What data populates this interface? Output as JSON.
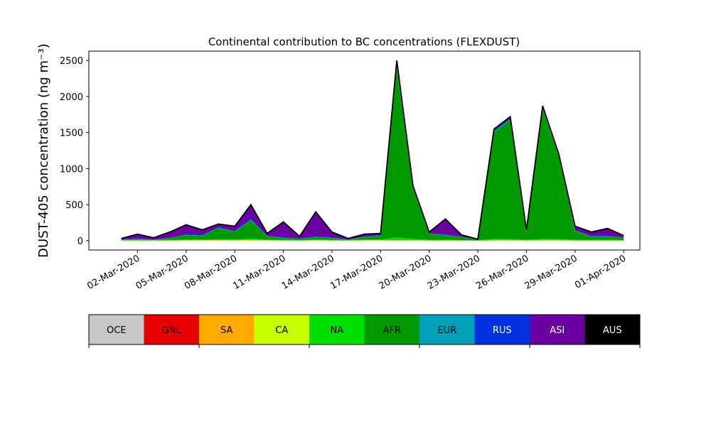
{
  "chart_data": {
    "type": "stacked_area",
    "title": "Continental contribution to BC concentrations (FLEXDUST)",
    "ylabel": "DUST-405 concentration (ng m⁻³)",
    "x": [
      "01-Mar-2020",
      "02-Mar-2020",
      "03-Mar-2020",
      "04-Mar-2020",
      "05-Mar-2020",
      "06-Mar-2020",
      "07-Mar-2020",
      "08-Mar-2020",
      "09-Mar-2020",
      "10-Mar-2020",
      "11-Mar-2020",
      "12-Mar-2020",
      "13-Mar-2020",
      "14-Mar-2020",
      "15-Mar-2020",
      "16-Mar-2020",
      "17-Mar-2020",
      "18-Mar-2020",
      "19-Mar-2020",
      "20-Mar-2020",
      "21-Mar-2020",
      "22-Mar-2020",
      "23-Mar-2020",
      "24-Mar-2020",
      "25-Mar-2020",
      "26-Mar-2020",
      "27-Mar-2020",
      "28-Mar-2020",
      "29-Mar-2020",
      "30-Mar-2020",
      "31-Mar-2020",
      "01-Apr-2020"
    ],
    "series": [
      {
        "name": "OCE",
        "color": "#c8c8c8",
        "values": [
          0,
          0,
          0,
          0,
          0,
          0,
          0,
          0,
          0,
          0,
          0,
          0,
          0,
          0,
          0,
          0,
          0,
          0,
          0,
          0,
          0,
          0,
          0,
          0,
          0,
          0,
          0,
          0,
          0,
          0,
          0,
          0
        ]
      },
      {
        "name": "GNL",
        "color": "#e60000",
        "values": [
          0,
          0,
          0,
          0,
          0,
          0,
          0,
          0,
          0,
          0,
          0,
          0,
          0,
          0,
          0,
          0,
          0,
          0,
          0,
          0,
          0,
          0,
          0,
          0,
          0,
          0,
          0,
          0,
          0,
          0,
          0,
          0
        ]
      },
      {
        "name": "SA",
        "color": "#ffaa00",
        "values": [
          0,
          0,
          0,
          0,
          0,
          0,
          0,
          0,
          0,
          0,
          0,
          0,
          0,
          0,
          0,
          0,
          0,
          0,
          0,
          0,
          0,
          0,
          0,
          0,
          0,
          0,
          0,
          0,
          0,
          0,
          0,
          0
        ]
      },
      {
        "name": "CA",
        "color": "#c8ff00",
        "values": [
          2,
          3,
          2,
          3,
          5,
          5,
          8,
          5,
          10,
          5,
          3,
          2,
          5,
          3,
          2,
          5,
          5,
          5,
          5,
          3,
          3,
          2,
          1,
          5,
          5,
          3,
          5,
          5,
          3,
          3,
          3,
          2
        ]
      },
      {
        "name": "NA",
        "color": "#00e000",
        "values": [
          5,
          8,
          5,
          8,
          10,
          10,
          15,
          15,
          20,
          10,
          10,
          5,
          10,
          10,
          5,
          10,
          10,
          40,
          20,
          10,
          10,
          5,
          3,
          20,
          20,
          10,
          20,
          20,
          10,
          10,
          10,
          5
        ]
      },
      {
        "name": "AFR",
        "color": "#009a00",
        "values": [
          5,
          10,
          5,
          20,
          60,
          50,
          150,
          100,
          250,
          40,
          20,
          15,
          30,
          20,
          5,
          30,
          50,
          2350,
          700,
          80,
          60,
          40,
          10,
          1480,
          1650,
          110,
          1800,
          1140,
          120,
          40,
          40,
          30
        ]
      },
      {
        "name": "EUR",
        "color": "#00a0b8",
        "values": [
          2,
          3,
          2,
          3,
          5,
          5,
          5,
          5,
          10,
          5,
          5,
          2,
          5,
          5,
          2,
          5,
          5,
          20,
          5,
          2,
          5,
          2,
          1,
          10,
          10,
          3,
          10,
          5,
          5,
          5,
          5,
          2
        ]
      },
      {
        "name": "RUS",
        "color": "#0033dd",
        "values": [
          3,
          5,
          3,
          5,
          10,
          10,
          10,
          10,
          20,
          5,
          10,
          3,
          15,
          5,
          2,
          5,
          5,
          30,
          10,
          5,
          10,
          3,
          1,
          15,
          15,
          5,
          15,
          10,
          10,
          10,
          10,
          3
        ]
      },
      {
        "name": "ASI",
        "color": "#6a00a0",
        "values": [
          13,
          61,
          23,
          81,
          130,
          70,
          42,
          65,
          190,
          35,
          212,
          33,
          335,
          77,
          14,
          35,
          25,
          55,
          20,
          20,
          212,
          28,
          4,
          20,
          20,
          19,
          20,
          20,
          52,
          52,
          102,
          28
        ]
      },
      {
        "name": "AUS",
        "color": "#000000",
        "values": [
          0,
          0,
          0,
          0,
          0,
          0,
          0,
          0,
          0,
          0,
          0,
          0,
          0,
          0,
          0,
          0,
          0,
          0,
          0,
          0,
          0,
          0,
          0,
          0,
          0,
          0,
          0,
          0,
          0,
          0,
          0,
          0
        ]
      }
    ],
    "xlim": [
      "28-Feb-2020",
      "02-Apr-2020"
    ],
    "xticks": [
      "02-Mar-2020",
      "05-Mar-2020",
      "08-Mar-2020",
      "11-Mar-2020",
      "14-Mar-2020",
      "17-Mar-2020",
      "20-Mar-2020",
      "23-Mar-2020",
      "26-Mar-2020",
      "29-Mar-2020",
      "01-Apr-2020"
    ],
    "ylim": [
      -130,
      2630
    ],
    "yticks": [
      0,
      500,
      1000,
      1500,
      2000,
      2500
    ]
  }
}
